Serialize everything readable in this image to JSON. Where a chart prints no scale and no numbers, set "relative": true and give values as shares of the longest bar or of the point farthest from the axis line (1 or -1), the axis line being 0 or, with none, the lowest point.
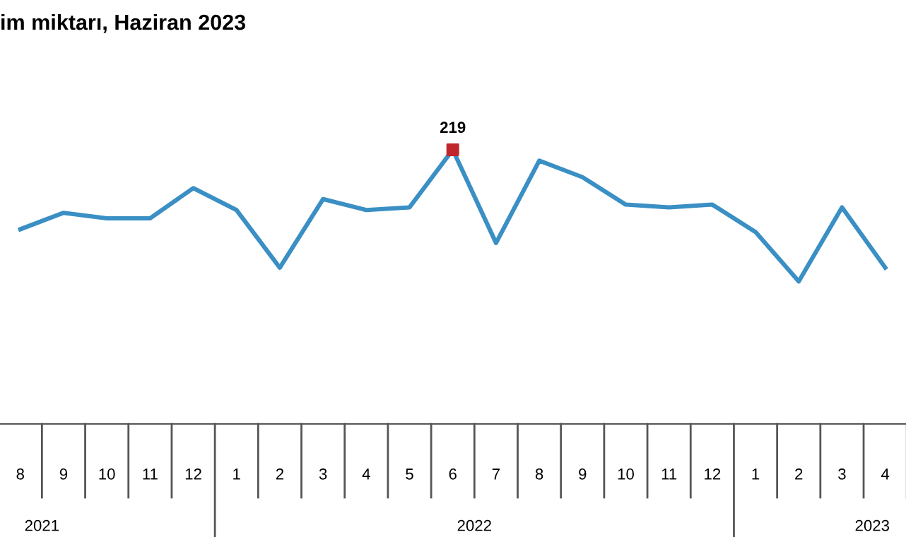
{
  "chart_data": {
    "type": "line",
    "title": "im miktarı, Haziran 2023",
    "relative": true,
    "categories": [
      "8",
      "9",
      "10",
      "11",
      "12",
      "1",
      "2",
      "3",
      "4",
      "5",
      "6",
      "7",
      "8",
      "9",
      "10",
      "11",
      "12",
      "1",
      "2",
      "3",
      "4"
    ],
    "annotations": [
      "2021",
      "2022",
      "2023",
      {
        "text": "219",
        "x": "6",
        "y": 1
      }
    ],
    "series": [
      {
        "color": "#3a8fc4",
        "values": [
          0.71,
          0.77,
          0.75,
          0.75,
          0.86,
          0.78,
          0.57,
          0.82,
          0.78,
          0.79,
          1,
          0.66,
          0.96,
          0.9,
          0.8,
          0.79,
          0.8,
          0.7,
          0.52,
          0.79,
          0.57
        ]
      },
      {
        "type": "scatter",
        "color": "#c0272d",
        "marker": "square",
        "values": [
          null,
          null,
          null,
          null,
          null,
          null,
          null,
          null,
          null,
          null,
          1,
          null,
          null,
          null,
          null,
          null,
          null,
          null,
          null,
          null,
          null
        ]
      }
    ]
  }
}
